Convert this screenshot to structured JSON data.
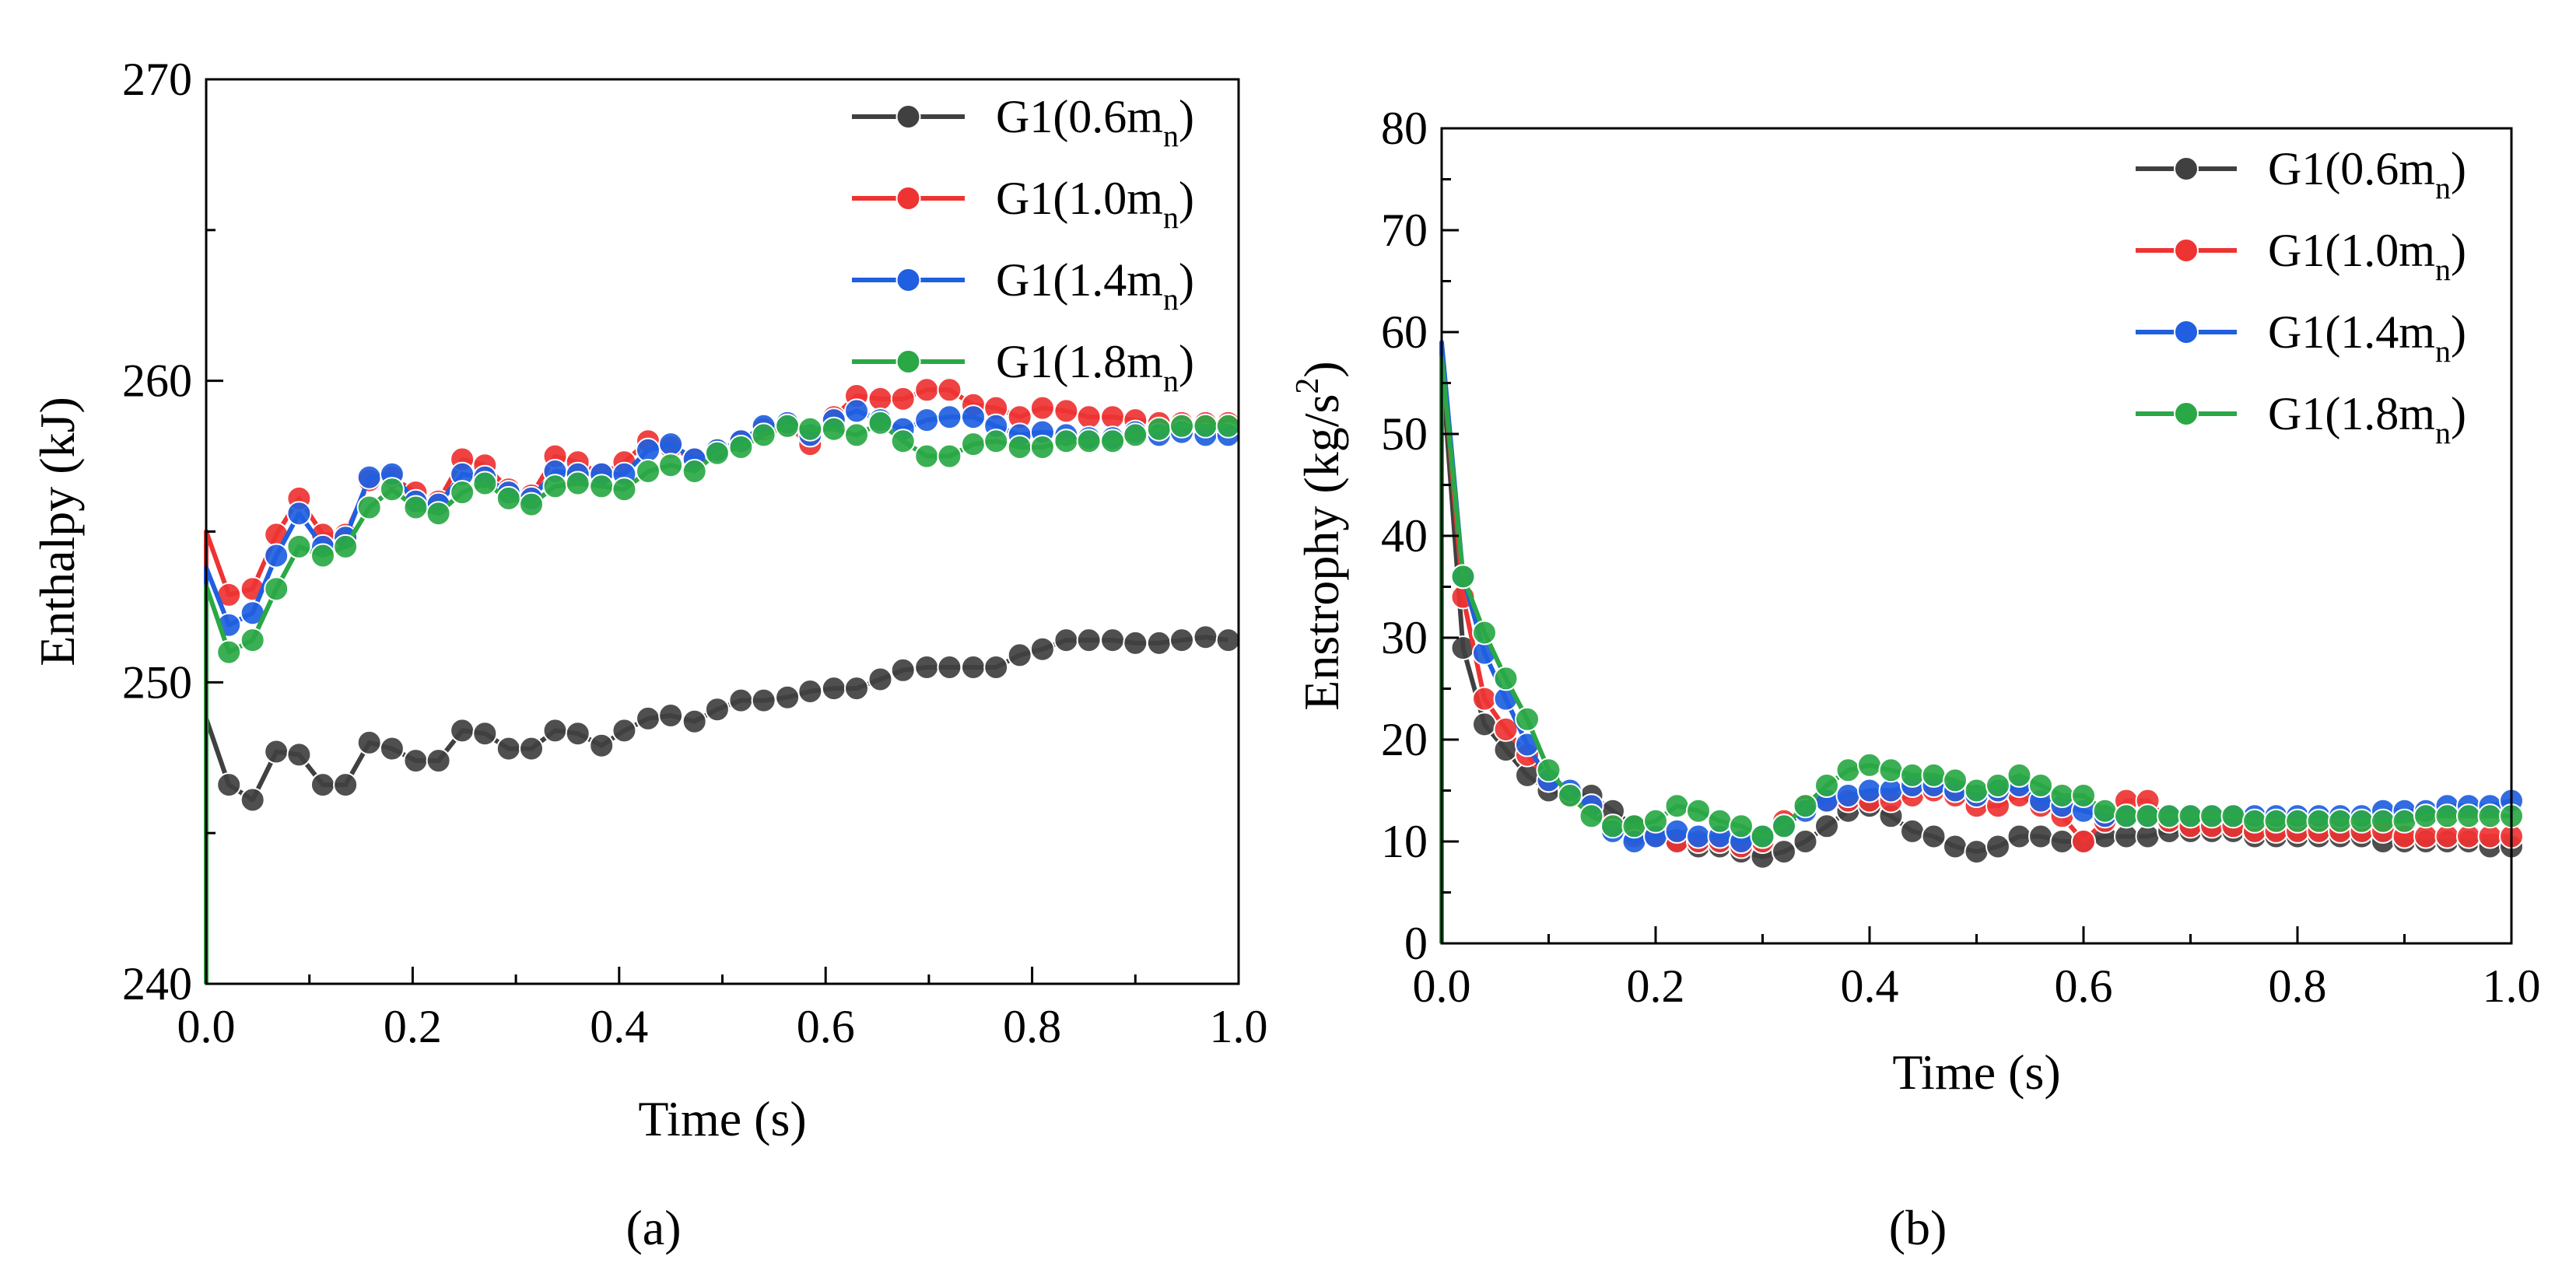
{
  "figure": {
    "panel_labels": [
      "(a)",
      "(b)"
    ]
  },
  "chart_data": [
    {
      "type": "line",
      "panel": "(a)",
      "title": "",
      "xlabel": "Time (s)",
      "ylabel": "Enthalpy (kJ)",
      "xlim": [
        0.0,
        1.0
      ],
      "ylim": [
        240,
        270
      ],
      "xticks": [
        0.0,
        0.2,
        0.4,
        0.6,
        0.8,
        1.0
      ],
      "xtick_labels": [
        "0.0",
        "0.2",
        "0.4",
        "0.6",
        "0.8",
        "1.0"
      ],
      "yticks": [
        240,
        250,
        260,
        270
      ],
      "ytick_labels": [
        "240",
        "250",
        "260",
        "270"
      ],
      "legend_position": "top-right",
      "x": [
        0.0,
        0.022,
        0.045,
        0.068,
        0.09,
        0.113,
        0.135,
        0.158,
        0.18,
        0.203,
        0.225,
        0.248,
        0.27,
        0.293,
        0.315,
        0.338,
        0.36,
        0.383,
        0.405,
        0.428,
        0.45,
        0.473,
        0.495,
        0.518,
        0.54,
        0.563,
        0.585,
        0.608,
        0.63,
        0.653,
        0.675,
        0.698,
        0.72,
        0.743,
        0.765,
        0.788,
        0.81,
        0.833,
        0.855,
        0.878,
        0.9,
        0.923,
        0.945,
        0.968,
        0.99
      ],
      "series": [
        {
          "name": "G1(0.6m",
          "sub": "n",
          "suffix": ")",
          "color": "#404040",
          "values": [
            248.8,
            246.6,
            246.1,
            247.7,
            247.6,
            246.6,
            246.6,
            248.0,
            247.8,
            247.4,
            247.4,
            248.4,
            248.3,
            247.8,
            247.8,
            248.4,
            248.3,
            247.9,
            248.4,
            248.8,
            248.9,
            248.7,
            249.1,
            249.4,
            249.4,
            249.5,
            249.7,
            249.8,
            249.8,
            250.1,
            250.4,
            250.5,
            250.5,
            250.5,
            250.5,
            250.9,
            251.1,
            251.4,
            251.4,
            251.4,
            251.3,
            251.3,
            251.4,
            251.5,
            251.4
          ]
        },
        {
          "name": "G1(1.0m",
          "sub": "n",
          "suffix": ")",
          "color": "#ee3333",
          "values": [
            255.0,
            252.9,
            253.1,
            254.9,
            256.1,
            254.9,
            254.9,
            256.7,
            256.8,
            256.3,
            256.0,
            257.4,
            257.2,
            256.4,
            256.2,
            257.5,
            257.3,
            256.9,
            257.3,
            258.0,
            257.8,
            257.4,
            257.7,
            258.0,
            258.4,
            258.5,
            257.9,
            258.8,
            259.5,
            259.4,
            259.4,
            259.7,
            259.7,
            259.2,
            259.1,
            258.8,
            259.1,
            259.0,
            258.8,
            258.8,
            258.7,
            258.6,
            258.6,
            258.6,
            258.6
          ]
        },
        {
          "name": "G1(1.4m",
          "sub": "n",
          "suffix": ")",
          "color": "#1f5fe0",
          "values": [
            253.8,
            251.9,
            252.3,
            254.2,
            255.6,
            254.5,
            254.8,
            256.8,
            256.9,
            256.0,
            255.9,
            256.9,
            256.8,
            256.3,
            256.1,
            257.0,
            256.9,
            256.9,
            256.9,
            257.7,
            257.9,
            257.4,
            257.7,
            258.0,
            258.5,
            258.6,
            258.2,
            258.7,
            259.0,
            258.7,
            258.4,
            258.7,
            258.8,
            258.8,
            258.5,
            258.2,
            258.3,
            258.2,
            258.1,
            258.1,
            258.3,
            258.2,
            258.3,
            258.2,
            258.2
          ]
        },
        {
          "name": "G1(1.8m",
          "sub": "n",
          "suffix": ")",
          "color": "#2aa845",
          "values": [
            253.2,
            251.0,
            251.4,
            253.1,
            254.5,
            254.2,
            254.5,
            255.8,
            256.4,
            255.8,
            255.6,
            256.3,
            256.6,
            256.1,
            255.9,
            256.5,
            256.6,
            256.5,
            256.4,
            257.0,
            257.2,
            257.0,
            257.6,
            257.8,
            258.2,
            258.5,
            258.4,
            258.4,
            258.2,
            258.6,
            258.0,
            257.5,
            257.5,
            257.9,
            258.0,
            257.8,
            257.8,
            258.0,
            258.0,
            258.0,
            258.2,
            258.4,
            258.5,
            258.5,
            258.5
          ]
        }
      ]
    },
    {
      "type": "line",
      "panel": "(b)",
      "title": "",
      "xlabel": "Time (s)",
      "ylabel": "Enstrophy (kg/s",
      "ylabel_sup": "2",
      "ylabel_suffix": ")",
      "xlim": [
        0.0,
        1.0
      ],
      "ylim": [
        0,
        80
      ],
      "xticks": [
        0.0,
        0.2,
        0.4,
        0.6,
        0.8,
        1.0
      ],
      "xtick_labels": [
        "0.0",
        "0.2",
        "0.4",
        "0.6",
        "0.8",
        "1.0"
      ],
      "yticks": [
        0,
        10,
        20,
        30,
        40,
        50,
        60,
        70,
        80
      ],
      "ytick_labels": [
        "0",
        "10",
        "20",
        "30",
        "40",
        "50",
        "60",
        "70",
        "80"
      ],
      "legend_position": "top-right",
      "x": [
        0.0,
        0.02,
        0.04,
        0.06,
        0.08,
        0.1,
        0.12,
        0.14,
        0.16,
        0.18,
        0.2,
        0.22,
        0.24,
        0.26,
        0.28,
        0.3,
        0.32,
        0.34,
        0.36,
        0.38,
        0.4,
        0.42,
        0.44,
        0.46,
        0.48,
        0.5,
        0.52,
        0.54,
        0.56,
        0.58,
        0.6,
        0.62,
        0.64,
        0.66,
        0.68,
        0.7,
        0.72,
        0.74,
        0.76,
        0.78,
        0.8,
        0.82,
        0.84,
        0.86,
        0.88,
        0.9,
        0.92,
        0.94,
        0.96,
        0.98,
        1.0
      ],
      "series": [
        {
          "name": "G1(0.6m",
          "sub": "n",
          "suffix": ")",
          "color": "#404040",
          "values": [
            57.0,
            29.0,
            21.5,
            19.0,
            16.5,
            15.0,
            14.5,
            14.5,
            13.0,
            11.5,
            10.5,
            10.0,
            9.5,
            9.5,
            9.0,
            8.5,
            9.0,
            10.0,
            11.5,
            13.0,
            13.5,
            12.5,
            11.0,
            10.5,
            9.5,
            9.0,
            9.5,
            10.5,
            10.5,
            10.0,
            10.0,
            10.5,
            10.5,
            10.5,
            11.0,
            11.0,
            11.0,
            11.0,
            10.5,
            10.5,
            10.5,
            10.5,
            10.5,
            10.5,
            10.0,
            10.0,
            10.0,
            10.0,
            10.0,
            9.5,
            9.5
          ]
        },
        {
          "name": "G1(1.0m",
          "sub": "n",
          "suffix": ")",
          "color": "#ee3333",
          "values": [
            58.0,
            34.0,
            24.0,
            21.0,
            18.5,
            16.0,
            14.5,
            13.5,
            11.5,
            10.5,
            10.5,
            10.0,
            10.0,
            10.0,
            9.5,
            10.0,
            12.0,
            13.5,
            14.0,
            14.0,
            14.0,
            14.0,
            14.5,
            15.0,
            14.5,
            13.5,
            13.5,
            14.5,
            13.5,
            12.5,
            10.0,
            12.0,
            14.0,
            14.0,
            12.0,
            11.5,
            11.5,
            11.5,
            11.0,
            11.0,
            11.0,
            11.0,
            11.0,
            11.0,
            11.0,
            10.5,
            10.5,
            10.5,
            10.5,
            10.5,
            10.5
          ]
        },
        {
          "name": "G1(1.4m",
          "sub": "n",
          "suffix": ")",
          "color": "#1f5fe0",
          "values": [
            59.0,
            36.0,
            28.5,
            24.0,
            19.5,
            16.0,
            15.0,
            13.5,
            11.0,
            10.0,
            10.5,
            11.0,
            10.5,
            10.5,
            10.0,
            10.5,
            11.5,
            13.0,
            14.0,
            14.5,
            15.0,
            15.0,
            15.5,
            15.5,
            15.0,
            14.5,
            15.0,
            15.5,
            14.0,
            13.5,
            13.0,
            12.5,
            12.5,
            12.5,
            12.5,
            12.5,
            12.5,
            12.5,
            12.5,
            12.5,
            12.5,
            12.5,
            12.5,
            12.5,
            13.0,
            13.0,
            13.0,
            13.5,
            13.5,
            13.5,
            14.0
          ]
        },
        {
          "name": "G1(1.8m",
          "sub": "n",
          "suffix": ")",
          "color": "#2aa845",
          "values": [
            57.5,
            36.0,
            30.5,
            26.0,
            22.0,
            17.0,
            14.5,
            12.5,
            11.5,
            11.5,
            12.0,
            13.5,
            13.0,
            12.0,
            11.5,
            10.5,
            11.5,
            13.5,
            15.5,
            17.0,
            17.5,
            17.0,
            16.5,
            16.5,
            16.0,
            15.0,
            15.5,
            16.5,
            15.5,
            14.5,
            14.5,
            13.0,
            12.5,
            12.5,
            12.5,
            12.5,
            12.5,
            12.5,
            12.0,
            12.0,
            12.0,
            12.0,
            12.0,
            12.0,
            12.0,
            12.0,
            12.5,
            12.5,
            12.5,
            12.5,
            12.5
          ]
        }
      ]
    }
  ]
}
